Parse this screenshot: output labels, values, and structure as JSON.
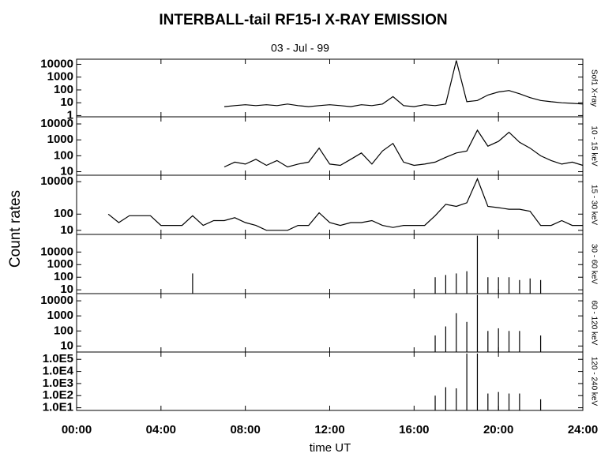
{
  "title": "INTERBALL-tail  RF15-I   X-RAY  EMISSION",
  "subtitle": "03 - Jul - 99",
  "y_label": "Count  rates",
  "x_label": "time UT",
  "chart_data": [
    {
      "type": "line",
      "channel": "Sof1  X-ray",
      "log_scale": true,
      "color": "#000000",
      "ylim": [
        0.8,
        25000
      ],
      "yticks": [
        1,
        10,
        100,
        1000,
        10000
      ],
      "xlim": [
        0,
        24
      ],
      "x": [
        0,
        0.5,
        1,
        1.5,
        2,
        2.5,
        3,
        3.5,
        4,
        4.5,
        5,
        5.5,
        6,
        6.5,
        7,
        7.5,
        8,
        8.5,
        9,
        9.5,
        10,
        10.5,
        11,
        11.5,
        12,
        12.5,
        13,
        13.5,
        14,
        14.5,
        15,
        15.5,
        16,
        16.5,
        17,
        17.5,
        18,
        18.5,
        19,
        19.5,
        20,
        20.5,
        21,
        21.5,
        22,
        22.5,
        23,
        23.5,
        24
      ],
      "values": [
        null,
        null,
        null,
        null,
        null,
        null,
        null,
        null,
        null,
        null,
        null,
        null,
        null,
        null,
        5,
        6,
        7,
        6,
        7,
        6,
        8,
        6,
        5,
        6,
        7,
        6,
        5,
        7,
        6,
        8,
        30,
        6,
        5,
        7,
        6,
        8,
        20000,
        12,
        15,
        40,
        70,
        90,
        50,
        25,
        15,
        12,
        10,
        9,
        8
      ]
    },
    {
      "type": "line",
      "channel": "10 - 15 keV",
      "log_scale": true,
      "color": "#000000",
      "ylim": [
        6,
        28000
      ],
      "yticks": [
        10,
        100,
        1000,
        10000
      ],
      "xlim": [
        0,
        24
      ],
      "x": [
        0,
        0.5,
        1,
        1.5,
        2,
        2.5,
        3,
        3.5,
        4,
        4.5,
        5,
        5.5,
        6,
        6.5,
        7,
        7.5,
        8,
        8.5,
        9,
        9.5,
        10,
        10.5,
        11,
        11.5,
        12,
        12.5,
        13,
        13.5,
        14,
        14.5,
        15,
        15.5,
        16,
        16.5,
        17,
        17.5,
        18,
        18.5,
        19,
        19.5,
        20,
        20.5,
        21,
        21.5,
        22,
        22.5,
        23,
        23.5,
        24
      ],
      "values": [
        null,
        null,
        null,
        null,
        null,
        null,
        null,
        null,
        null,
        null,
        null,
        null,
        null,
        null,
        20,
        40,
        30,
        60,
        25,
        50,
        20,
        30,
        40,
        300,
        30,
        25,
        60,
        150,
        30,
        200,
        600,
        40,
        25,
        30,
        40,
        80,
        150,
        200,
        4000,
        400,
        800,
        3000,
        700,
        300,
        100,
        50,
        30,
        40,
        25
      ]
    },
    {
      "type": "line",
      "channel": "15 - 30 keV",
      "log_scale": true,
      "color": "#000000",
      "ylim": [
        5.6,
        25000
      ],
      "yticks": [
        10,
        100,
        10000
      ],
      "xlim": [
        0,
        24
      ],
      "x": [
        0,
        0.5,
        1,
        1.5,
        2,
        2.5,
        3,
        3.5,
        4,
        4.5,
        5,
        5.5,
        6,
        6.5,
        7,
        7.5,
        8,
        8.5,
        9,
        9.5,
        10,
        10.5,
        11,
        11.5,
        12,
        12.5,
        13,
        13.5,
        14,
        14.5,
        15,
        15.5,
        16,
        16.5,
        17,
        17.5,
        18,
        18.5,
        19,
        19.5,
        20,
        20.5,
        21,
        21.5,
        22,
        22.5,
        23,
        23.5,
        24
      ],
      "values": [
        null,
        null,
        null,
        100,
        30,
        80,
        80,
        80,
        20,
        20,
        20,
        80,
        20,
        40,
        40,
        60,
        30,
        20,
        10,
        10,
        10,
        20,
        20,
        120,
        30,
        20,
        30,
        30,
        40,
        20,
        15,
        20,
        20,
        20,
        80,
        400,
        300,
        500,
        15000,
        300,
        250,
        200,
        200,
        150,
        20,
        20,
        40,
        20,
        20
      ]
    },
    {
      "type": "stem",
      "channel": "30 - 60 keV",
      "log_scale": true,
      "color": "#000000",
      "ylim": [
        5,
        250000
      ],
      "yticks": [
        10,
        100,
        1000,
        10000
      ],
      "xlim": [
        0,
        24
      ],
      "x": [
        0,
        0.5,
        1,
        1.5,
        2,
        2.5,
        3,
        3.5,
        4,
        4.5,
        5,
        5.5,
        6,
        6.5,
        7,
        7.5,
        8,
        8.5,
        9,
        9.5,
        10,
        10.5,
        11,
        11.5,
        12,
        12.5,
        13,
        13.5,
        14,
        14.5,
        15,
        15.5,
        16,
        16.5,
        17,
        17.5,
        18,
        18.5,
        19,
        19.5,
        20,
        20.5,
        21,
        21.5,
        22,
        22.5,
        23,
        23.5,
        24
      ],
      "values": [
        null,
        null,
        null,
        null,
        null,
        null,
        null,
        null,
        null,
        null,
        null,
        200,
        null,
        null,
        null,
        null,
        null,
        null,
        null,
        null,
        null,
        null,
        null,
        null,
        null,
        null,
        null,
        null,
        null,
        null,
        null,
        null,
        null,
        null,
        100,
        150,
        200,
        300,
        200000,
        100,
        100,
        100,
        60,
        80,
        60,
        null,
        null,
        null,
        null
      ]
    },
    {
      "type": "stem",
      "channel": "60 - 120 keV",
      "log_scale": true,
      "color": "#000000",
      "ylim": [
        4,
        30000
      ],
      "yticks": [
        10,
        100,
        1000,
        10000
      ],
      "xlim": [
        0,
        24
      ],
      "x": [
        0,
        0.5,
        1,
        1.5,
        2,
        2.5,
        3,
        3.5,
        4,
        4.5,
        5,
        5.5,
        6,
        6.5,
        7,
        7.5,
        8,
        8.5,
        9,
        9.5,
        10,
        10.5,
        11,
        11.5,
        12,
        12.5,
        13,
        13.5,
        14,
        14.5,
        15,
        15.5,
        16,
        16.5,
        17,
        17.5,
        18,
        18.5,
        19,
        19.5,
        20,
        20.5,
        21,
        21.5,
        22,
        22.5,
        23,
        23.5,
        24
      ],
      "values": [
        null,
        null,
        null,
        null,
        null,
        null,
        null,
        null,
        null,
        null,
        null,
        null,
        null,
        null,
        null,
        null,
        null,
        null,
        null,
        null,
        null,
        null,
        null,
        null,
        null,
        null,
        null,
        null,
        null,
        null,
        null,
        null,
        null,
        null,
        50,
        200,
        1500,
        400,
        25000,
        100,
        150,
        100,
        100,
        null,
        50,
        null,
        null,
        null,
        null
      ]
    },
    {
      "type": "stem",
      "channel": "120 - 240 keV",
      "log_scale": true,
      "color": "#000000",
      "ylim": [
        6,
        400000
      ],
      "yticks": [
        {
          "value": 10,
          "label": "1.0E1"
        },
        {
          "value": 100,
          "label": "1.0E2"
        },
        {
          "value": 1000,
          "label": "1.0E3"
        },
        {
          "value": 10000,
          "label": "1.0E4"
        },
        {
          "value": 100000,
          "label": "1.0E5"
        }
      ],
      "xlim": [
        0,
        24
      ],
      "xticks": [
        {
          "value": 0,
          "label": "00:00"
        },
        {
          "value": 4,
          "label": "04:00"
        },
        {
          "value": 8,
          "label": "08:00"
        },
        {
          "value": 12,
          "label": "12:00"
        },
        {
          "value": 16,
          "label": "16:00"
        },
        {
          "value": 20,
          "label": "20:00"
        },
        {
          "value": 24,
          "label": "24:00"
        }
      ],
      "x": [
        0,
        0.5,
        1,
        1.5,
        2,
        2.5,
        3,
        3.5,
        4,
        4.5,
        5,
        5.5,
        6,
        6.5,
        7,
        7.5,
        8,
        8.5,
        9,
        9.5,
        10,
        10.5,
        11,
        11.5,
        12,
        12.5,
        13,
        13.5,
        14,
        14.5,
        15,
        15.5,
        16,
        16.5,
        17,
        17.5,
        18,
        18.5,
        19,
        19.5,
        20,
        20.5,
        21,
        21.5,
        22,
        22.5,
        23,
        23.5,
        24
      ],
      "values": [
        null,
        null,
        null,
        null,
        null,
        null,
        null,
        null,
        null,
        null,
        null,
        null,
        null,
        null,
        null,
        null,
        null,
        null,
        null,
        null,
        null,
        null,
        null,
        null,
        null,
        null,
        null,
        null,
        null,
        null,
        null,
        null,
        null,
        null,
        100,
        500,
        400,
        300000,
        300000,
        150,
        200,
        150,
        150,
        null,
        50,
        null,
        null,
        null,
        null
      ]
    }
  ]
}
